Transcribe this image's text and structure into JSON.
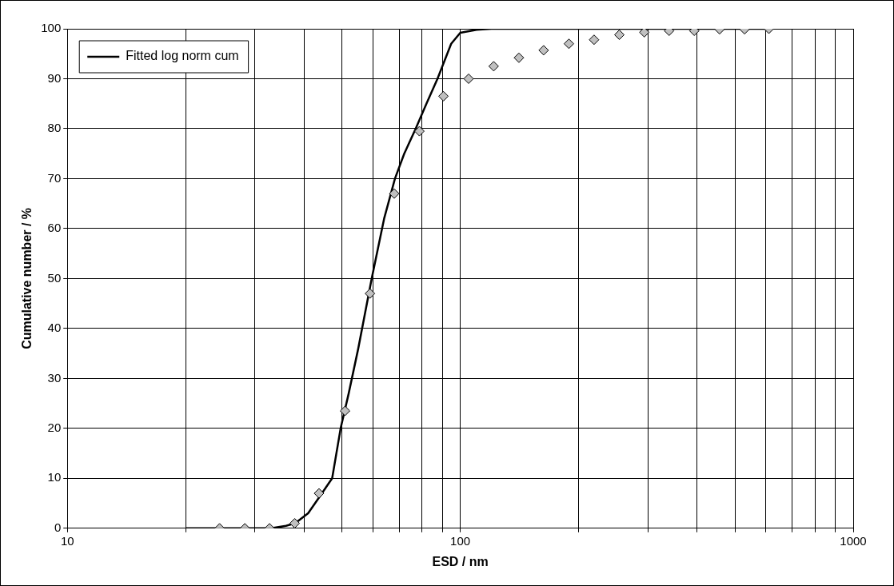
{
  "chart_data": {
    "type": "scatter",
    "xlabel": "ESD / nm",
    "ylabel": "Cumulative number / %",
    "log": "x",
    "xlim": [
      10,
      1000
    ],
    "ylim": [
      0,
      100
    ],
    "xticks": [
      10,
      {
        "value": 20,
        "label": null
      },
      {
        "value": 30,
        "label": null
      },
      {
        "value": 40,
        "label": null
      },
      {
        "value": 50,
        "label": null
      },
      {
        "value": 60,
        "label": null
      },
      {
        "value": 70,
        "label": null
      },
      {
        "value": 80,
        "label": null
      },
      {
        "value": 90,
        "label": null
      },
      100,
      {
        "value": 200,
        "label": null
      },
      {
        "value": 300,
        "label": null
      },
      {
        "value": 400,
        "label": null
      },
      {
        "value": 500,
        "label": null
      },
      {
        "value": 600,
        "label": null
      },
      {
        "value": 700,
        "label": null
      },
      {
        "value": 800,
        "label": null
      },
      {
        "value": 900,
        "label": null
      },
      1000
    ],
    "yticks": [
      0,
      10,
      20,
      30,
      40,
      50,
      60,
      70,
      80,
      90,
      100
    ],
    "grid": true,
    "legend": "top left",
    "marker": "diamond",
    "series": [
      {
        "color": "#c0c0c0",
        "x": [
          24.4,
          28.3,
          32.7,
          37.9,
          43.7,
          50.9,
          58.9,
          67.9,
          78.7,
          90.6,
          105,
          121.6,
          141,
          163,
          189,
          219,
          254,
          294,
          340,
          394,
          457,
          529,
          610
        ],
        "values": [
          0,
          0,
          0,
          1,
          7,
          23.5,
          47,
          67,
          79.5,
          86.5,
          90,
          92.5,
          94.2,
          95.7,
          97,
          97.8,
          98.8,
          99.3,
          99.6,
          99.6,
          99.9,
          99.9,
          100
        ]
      },
      {
        "type": "line",
        "name": "Fitted log norm cum",
        "color": "#000000",
        "marker": "none",
        "line_style": "solid",
        "x": [
          20,
          33,
          36,
          38,
          41,
          44,
          47.2,
          49.6,
          52,
          55,
          59.5,
          64,
          68.2,
          72,
          77,
          82,
          87.5,
          94.8,
          100,
          110,
          120,
          200,
          610
        ],
        "values": [
          0,
          0,
          0.5,
          1,
          3,
          6.5,
          10,
          20,
          27,
          36,
          50,
          62,
          70,
          75,
          80,
          85,
          90,
          97,
          99.2,
          99.8,
          100,
          100,
          100
        ]
      }
    ]
  }
}
